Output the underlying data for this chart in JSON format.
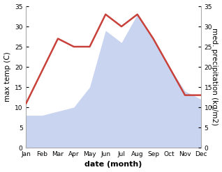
{
  "months": [
    "Jan",
    "Feb",
    "Mar",
    "Apr",
    "May",
    "Jun",
    "Jul",
    "Aug",
    "Sep",
    "Oct",
    "Nov",
    "Dec"
  ],
  "temperature": [
    11,
    19,
    27,
    25,
    25,
    33,
    30,
    33,
    27,
    20,
    13,
    13
  ],
  "precipitation": [
    8,
    8,
    9,
    10,
    15,
    29,
    26,
    33,
    27,
    20,
    14,
    12
  ],
  "temp_color": "#c8413a",
  "precip_fill_color": "#c8d4f0",
  "ylabel_left": "max temp (C)",
  "ylabel_right": "med. precipitation (kg/m2)",
  "xlabel": "date (month)",
  "ylim": [
    0,
    35
  ],
  "yticks": [
    0,
    5,
    10,
    15,
    20,
    25,
    30,
    35
  ],
  "temp_linewidth": 1.8,
  "bg_color": "#ffffff",
  "spine_color": "#aaaaaa",
  "tick_label_fontsize": 6.5,
  "axis_label_fontsize": 7.5,
  "xlabel_fontsize": 8
}
